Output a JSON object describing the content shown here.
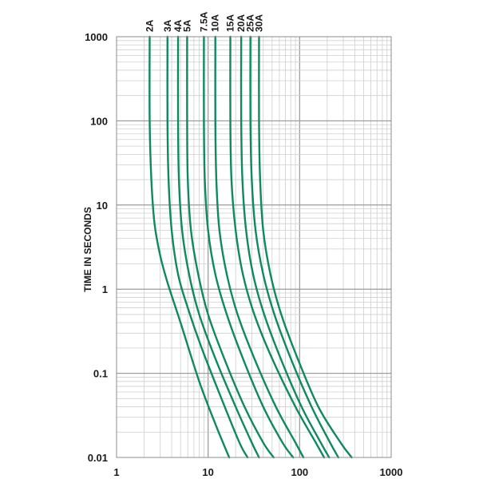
{
  "chart_data": {
    "type": "line",
    "title": "",
    "xlabel": "",
    "ylabel": "TIME IN SECONDS",
    "xscale": "log",
    "yscale": "log",
    "xlim": [
      1,
      1000
    ],
    "ylim": [
      0.01,
      1000
    ],
    "grid": true,
    "line_color": "#0f8a5f",
    "x_ticks": [
      "1",
      "10",
      "100",
      "1000"
    ],
    "y_ticks": [
      "1000",
      "100",
      "10",
      "1",
      "0.1",
      "0.01"
    ],
    "series": [
      {
        "name": "2A",
        "points": [
          [
            2.3,
            1000
          ],
          [
            2.3,
            100
          ],
          [
            2.4,
            20
          ],
          [
            2.6,
            6
          ],
          [
            3.0,
            2.5
          ],
          [
            3.6,
            1.2
          ],
          [
            5.0,
            0.4
          ],
          [
            8.0,
            0.08
          ],
          [
            12,
            0.025
          ],
          [
            17,
            0.01
          ]
        ]
      },
      {
        "name": "3A",
        "points": [
          [
            3.6,
            1000
          ],
          [
            3.6,
            100
          ],
          [
            3.7,
            20
          ],
          [
            4.0,
            5
          ],
          [
            4.7,
            1.5
          ],
          [
            6.0,
            0.6
          ],
          [
            8.5,
            0.2
          ],
          [
            14,
            0.05
          ],
          [
            22,
            0.015
          ],
          [
            27,
            0.01
          ]
        ]
      },
      {
        "name": "4A",
        "points": [
          [
            4.7,
            1000
          ],
          [
            4.7,
            100
          ],
          [
            4.8,
            20
          ],
          [
            5.2,
            5
          ],
          [
            6.2,
            1.5
          ],
          [
            8.0,
            0.5
          ],
          [
            12,
            0.15
          ],
          [
            20,
            0.04
          ],
          [
            30,
            0.015
          ],
          [
            36,
            0.01
          ]
        ]
      },
      {
        "name": "5A",
        "points": [
          [
            5.9,
            1000
          ],
          [
            5.9,
            100
          ],
          [
            6.0,
            20
          ],
          [
            6.5,
            5
          ],
          [
            7.8,
            1.5
          ],
          [
            10,
            0.5
          ],
          [
            15,
            0.15
          ],
          [
            25,
            0.04
          ],
          [
            40,
            0.015
          ],
          [
            52,
            0.01
          ]
        ]
      },
      {
        "name": "7.5A",
        "points": [
          [
            9.0,
            1000
          ],
          [
            9.0,
            100
          ],
          [
            9.2,
            20
          ],
          [
            10,
            5
          ],
          [
            12,
            1.5
          ],
          [
            16,
            0.5
          ],
          [
            24,
            0.15
          ],
          [
            40,
            0.04
          ],
          [
            65,
            0.015
          ],
          [
            85,
            0.01
          ]
        ]
      },
      {
        "name": "10A",
        "points": [
          [
            12,
            1000
          ],
          [
            12,
            100
          ],
          [
            12.3,
            20
          ],
          [
            13.3,
            5
          ],
          [
            16,
            1.5
          ],
          [
            21,
            0.5
          ],
          [
            32,
            0.15
          ],
          [
            55,
            0.04
          ],
          [
            90,
            0.015
          ],
          [
            110,
            0.01
          ]
        ]
      },
      {
        "name": "15A",
        "points": [
          [
            17.5,
            1000
          ],
          [
            17.5,
            100
          ],
          [
            18,
            20
          ],
          [
            20,
            5
          ],
          [
            24,
            1.5
          ],
          [
            32,
            0.5
          ],
          [
            50,
            0.15
          ],
          [
            90,
            0.04
          ],
          [
            150,
            0.015
          ],
          [
            185,
            0.01
          ]
        ]
      },
      {
        "name": "20A",
        "points": [
          [
            23,
            1000
          ],
          [
            23,
            100
          ],
          [
            23.7,
            20
          ],
          [
            26,
            5
          ],
          [
            31,
            1.5
          ],
          [
            41,
            0.5
          ],
          [
            62,
            0.15
          ],
          [
            105,
            0.04
          ],
          [
            170,
            0.015
          ],
          [
            210,
            0.01
          ]
        ]
      },
      {
        "name": "25A",
        "points": [
          [
            29,
            1000
          ],
          [
            29,
            100
          ],
          [
            30,
            20
          ],
          [
            33,
            5
          ],
          [
            40,
            1.5
          ],
          [
            53,
            0.5
          ],
          [
            80,
            0.15
          ],
          [
            135,
            0.04
          ],
          [
            215,
            0.015
          ],
          [
            265,
            0.01
          ]
        ]
      },
      {
        "name": "30A",
        "points": [
          [
            36,
            1000
          ],
          [
            36,
            100
          ],
          [
            37,
            20
          ],
          [
            40,
            5
          ],
          [
            48,
            1.5
          ],
          [
            63,
            0.5
          ],
          [
            95,
            0.15
          ],
          [
            160,
            0.04
          ],
          [
            280,
            0.015
          ],
          [
            370,
            0.01
          ]
        ]
      }
    ]
  }
}
